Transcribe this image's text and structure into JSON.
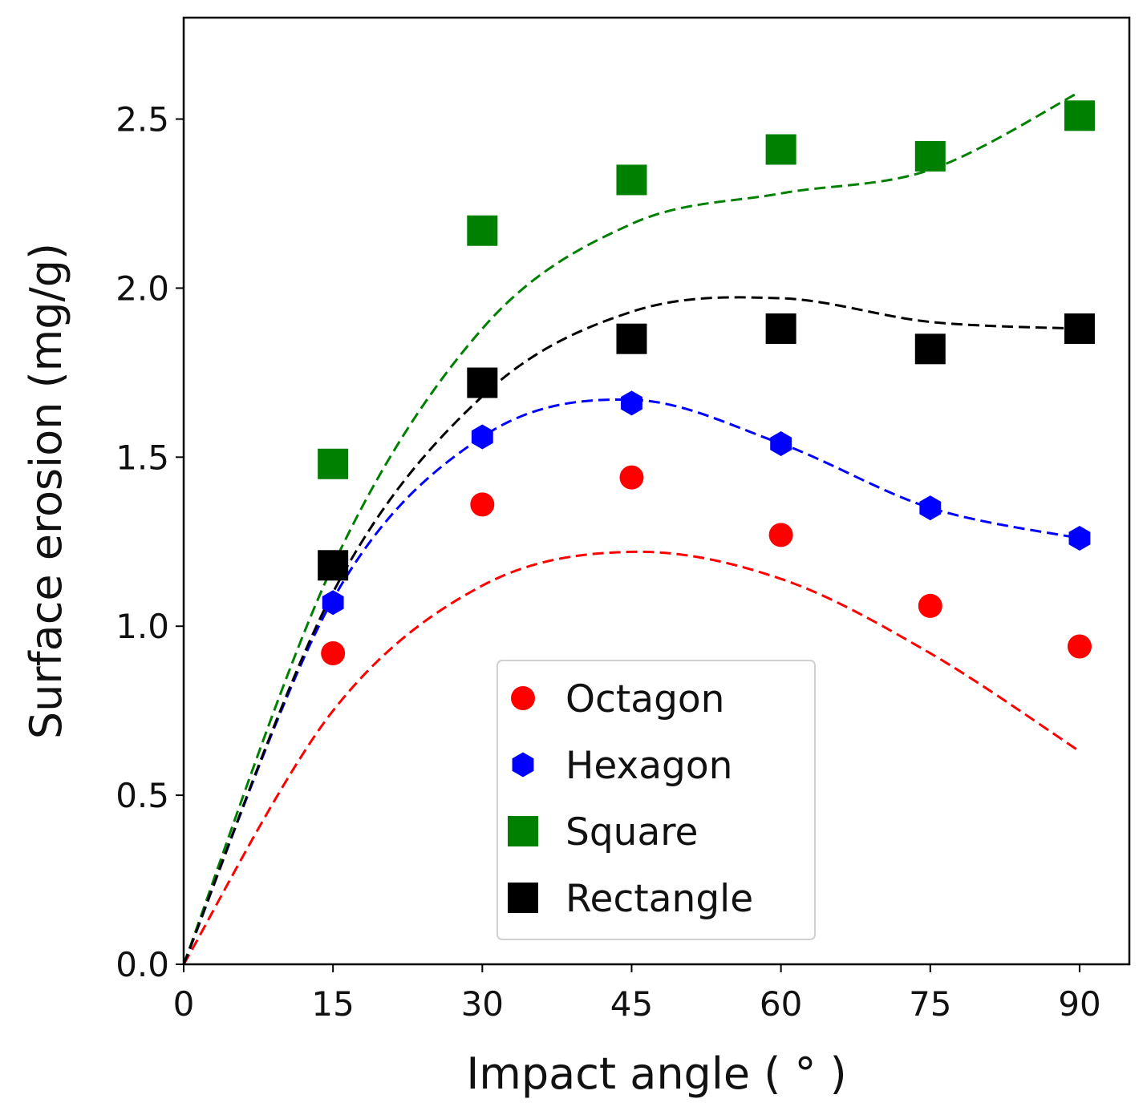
{
  "chart_data": {
    "type": "scatter",
    "title": "",
    "xlabel": "Impact angle ( ° )",
    "ylabel": "Surface erosion (mg/g)",
    "xlim": [
      0,
      95
    ],
    "ylim": [
      0,
      2.8
    ],
    "xticks": [
      0,
      15,
      30,
      45,
      60,
      75,
      90
    ],
    "yticks": [
      0.0,
      0.5,
      1.0,
      1.5,
      2.0,
      2.5
    ],
    "xtick_labels": [
      "0",
      "15",
      "30",
      "45",
      "60",
      "75",
      "90"
    ],
    "ytick_labels": [
      "0.0",
      "0.5",
      "1.0",
      "1.5",
      "2.0",
      "2.5"
    ],
    "grid": false,
    "legend_position": "lower-center",
    "x": [
      15,
      30,
      45,
      60,
      75,
      90
    ],
    "series": [
      {
        "name": "Octagon",
        "marker": "circle",
        "color": "#ff0000",
        "values": [
          0.92,
          1.36,
          1.44,
          1.27,
          1.06,
          0.94
        ],
        "fit": {
          "x": [
            0,
            15,
            30,
            45,
            60,
            75,
            90
          ],
          "y": [
            0.0,
            0.75,
            1.12,
            1.22,
            1.14,
            0.92,
            0.63
          ]
        }
      },
      {
        "name": "Hexagon",
        "marker": "hexagon",
        "color": "#0000ff",
        "values": [
          1.07,
          1.56,
          1.66,
          1.54,
          1.35,
          1.26
        ],
        "fit": {
          "x": [
            0,
            15,
            30,
            45,
            60,
            75,
            90
          ],
          "y": [
            0.0,
            1.08,
            1.56,
            1.67,
            1.54,
            1.35,
            1.26
          ]
        }
      },
      {
        "name": "Square",
        "marker": "square",
        "color": "#008000",
        "values": [
          1.48,
          2.17,
          2.32,
          2.41,
          2.39,
          2.51
        ],
        "fit": {
          "x": [
            0,
            15,
            30,
            45,
            60,
            75,
            90
          ],
          "y": [
            0.0,
            1.18,
            1.88,
            2.19,
            2.28,
            2.35,
            2.58
          ]
        }
      },
      {
        "name": "Rectangle",
        "marker": "square",
        "color": "#000000",
        "values": [
          1.18,
          1.72,
          1.85,
          1.88,
          1.82,
          1.88
        ],
        "fit": {
          "x": [
            0,
            15,
            30,
            45,
            60,
            75,
            90
          ],
          "y": [
            0.0,
            1.1,
            1.68,
            1.93,
            1.97,
            1.9,
            1.88
          ]
        }
      }
    ]
  }
}
